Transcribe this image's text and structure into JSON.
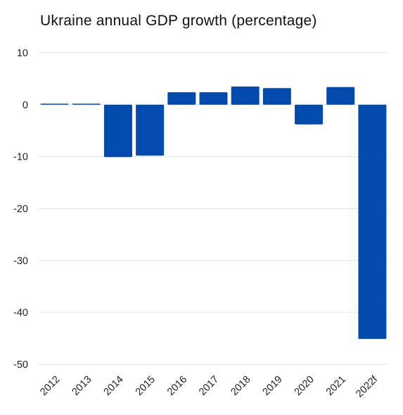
{
  "chart_data": {
    "type": "bar",
    "title": "Ukraine annual GDP growth (percentage)",
    "xlabel": "",
    "ylabel": "",
    "categories": [
      "2012",
      "2013",
      "2014",
      "2015",
      "2016",
      "2017",
      "2018",
      "2019",
      "2020",
      "2021",
      "2022f"
    ],
    "values": [
      0.2,
      0.0,
      -10.1,
      -9.8,
      2.4,
      2.4,
      3.5,
      3.2,
      -3.8,
      3.4,
      -45.1
    ],
    "ylim": [
      -50,
      10
    ],
    "yticks": [
      10,
      0,
      -10,
      -20,
      -30,
      -40,
      -50
    ],
    "grid": true,
    "bar_color": "#034AAD",
    "grid_color": "#e2e2e2",
    "x_tick_rotation": -45
  }
}
